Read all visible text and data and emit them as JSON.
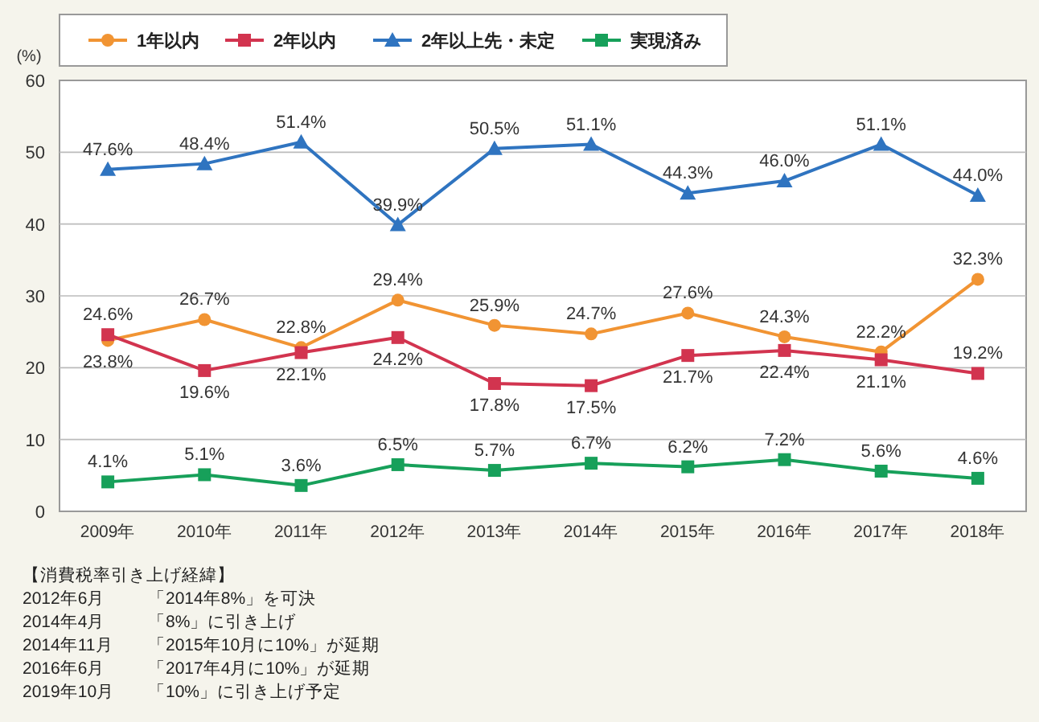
{
  "chart_data": {
    "type": "line",
    "ylabel": "(%)",
    "categories": [
      "2009年",
      "2010年",
      "2011年",
      "2012年",
      "2013年",
      "2014年",
      "2015年",
      "2016年",
      "2017年",
      "2018年"
    ],
    "series": [
      {
        "name": "1年以内",
        "color": "#f19433",
        "marker": "circle",
        "values": [
          23.8,
          26.7,
          22.8,
          29.4,
          25.9,
          24.7,
          27.6,
          24.3,
          22.2,
          32.3
        ],
        "value_labels": [
          "23.8%",
          "26.7%",
          "22.8%",
          "29.4%",
          "25.9%",
          "24.7%",
          "27.6%",
          "24.3%",
          "22.2%",
          "32.3%"
        ]
      },
      {
        "name": "2年以内",
        "color": "#d2344f",
        "marker": "square",
        "values": [
          24.6,
          19.6,
          22.1,
          24.2,
          17.8,
          17.5,
          21.7,
          22.4,
          21.1,
          19.2
        ],
        "value_labels": [
          "24.6%",
          "19.6%",
          "22.1%",
          "24.2%",
          "17.8%",
          "17.5%",
          "21.7%",
          "22.4%",
          "21.1%",
          "19.2%"
        ]
      },
      {
        "name": "2年以上先・未定",
        "color": "#2f74c0",
        "marker": "triangle",
        "values": [
          47.6,
          48.4,
          51.4,
          39.9,
          50.5,
          51.1,
          44.3,
          46.0,
          51.1,
          44.0
        ],
        "value_labels": [
          "47.6%",
          "48.4%",
          "51.4%",
          "39.9%",
          "50.5%",
          "51.1%",
          "44.3%",
          "46.0%",
          "51.1%",
          "44.0%"
        ]
      },
      {
        "name": "実現済み",
        "color": "#17a05a",
        "marker": "square",
        "values": [
          4.1,
          5.1,
          3.6,
          6.5,
          5.7,
          6.7,
          6.2,
          7.2,
          5.6,
          4.6
        ],
        "value_labels": [
          "4.1%",
          "5.1%",
          "3.6%",
          "6.5%",
          "5.7%",
          "6.7%",
          "6.2%",
          "7.2%",
          "5.6%",
          "4.6%"
        ]
      }
    ],
    "ylim": [
      0,
      60
    ],
    "yticks": [
      0,
      10,
      20,
      30,
      40,
      50,
      60
    ],
    "grid": "y",
    "legend": "top",
    "annotations": [
      "【消費税率引き上げ経緯】",
      "2012年6月\t「2014年8%」を可決",
      "2014年4月\t「8%」に引き上げ",
      "2014年11月\t「2015年10月に10%」が延期",
      "2016年6月\t「2017年4月に10%」が延期",
      "2019年10月\t「10%」に引き上げ予定"
    ]
  }
}
